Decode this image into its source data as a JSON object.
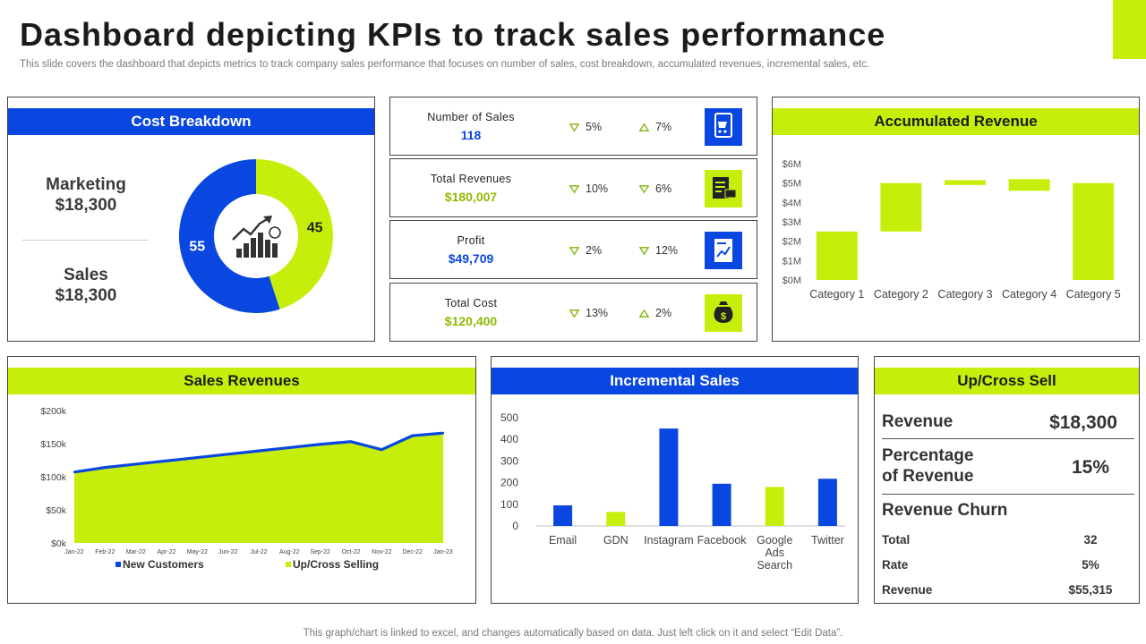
{
  "header": {
    "title": "Dashboard depicting KPIs to track sales performance",
    "subtitle": "This slide covers the dashboard that depicts metrics to track company sales performance that focuses on number of sales, cost breakdown, accumulated revenues, incremental sales, etc."
  },
  "footer": "This graph/chart is linked to excel,  and changes automatically based on data. Just left click on it and select “Edit Data”.",
  "colors": {
    "blue": "#0a47e0",
    "lime": "#c5ef0a",
    "green_text": "#8dbb00"
  },
  "cost_breakdown": {
    "title": "Cost Breakdown",
    "marketing_label": "Marketing",
    "marketing_value": "$18,300",
    "sales_label": "Sales",
    "sales_value": "$18,300",
    "center_icon": "growth-chart-icon"
  },
  "kpis": [
    {
      "name": "Number of Sales",
      "value": "118",
      "value_color": "#0a47e0",
      "delta1": "5%",
      "delta1_dir": "down",
      "delta2": "7%",
      "delta2_dir": "up",
      "icon": "shopping-cart-icon",
      "icon_bg": "#0a47e0"
    },
    {
      "name": "Total Revenues",
      "value": "$180,007",
      "value_color": "#8dbb00",
      "delta1": "10%",
      "delta1_dir": "down",
      "delta2": "6%",
      "delta2_dir": "down",
      "icon": "invoice-money-icon",
      "icon_bg": "#c5ef0a"
    },
    {
      "name": "Profit",
      "value": "$49,709",
      "value_color": "#0a47e0",
      "delta1": "2%",
      "delta1_dir": "down",
      "delta2": "12%",
      "delta2_dir": "down",
      "icon": "profit-document-icon",
      "icon_bg": "#0a47e0"
    },
    {
      "name": "Total Cost",
      "value": "$120,400",
      "value_color": "#8dbb00",
      "delta1": "13%",
      "delta1_dir": "down",
      "delta2": "2%",
      "delta2_dir": "up",
      "icon": "money-bag-icon",
      "icon_bg": "#c5ef0a"
    }
  ],
  "accumulated_revenue": {
    "title": "Accumulated Revenue"
  },
  "sales_revenues": {
    "title": "Sales Revenues"
  },
  "incremental_sales": {
    "title": "Incremental Sales"
  },
  "upcross": {
    "title": "Up/Cross Sell",
    "revenue_label": "Revenue",
    "revenue_value": "$18,300",
    "pct_label_1": "Percentage",
    "pct_label_2": "of Revenue",
    "pct_value": "15%",
    "churn_title": "Revenue Churn",
    "churn_rows": [
      {
        "label": "Total",
        "value": "32"
      },
      {
        "label": "Rate",
        "value": "5%"
      },
      {
        "label": "Revenue",
        "value": "$55,315"
      }
    ]
  },
  "chart_data": [
    {
      "id": "cost_breakdown_donut",
      "type": "pie",
      "title": "Cost Breakdown",
      "slices": [
        {
          "label": "55",
          "value": 55,
          "color": "#0a47e0"
        },
        {
          "label": "45",
          "value": 45,
          "color": "#c5ef0a"
        }
      ]
    },
    {
      "id": "accumulated_revenue",
      "type": "bar",
      "subtype": "waterfall",
      "title": "Accumulated Revenue",
      "categories": [
        "Category 1",
        "Category 2",
        "Category 3",
        "Category 4",
        "Category 5"
      ],
      "low": [
        0,
        2.5,
        4.9,
        4.6,
        0
      ],
      "high": [
        2.5,
        5.0,
        5.15,
        5.2,
        5.0
      ],
      "ylim": [
        0,
        6
      ],
      "yticks": [
        "$0M",
        "$1M",
        "$2M",
        "$3M",
        "$4M",
        "$5M",
        "$6M"
      ],
      "color": "#c5ef0a"
    },
    {
      "id": "sales_revenues",
      "type": "area",
      "title": "Sales Revenues",
      "x": [
        "Jan-22",
        "Feb-22",
        "Mar-22",
        "Apr-22",
        "May-22",
        "Jun-22",
        "Jul-22",
        "Aug-22",
        "Sep-22",
        "Oct-22",
        "Nov-22",
        "Dec-22",
        "Jan-23"
      ],
      "ylim": [
        0,
        200
      ],
      "yticks": [
        "$0k",
        "$50k",
        "$100k",
        "$150k",
        "$200k"
      ],
      "series": [
        {
          "name": "New Customers",
          "type": "line",
          "color": "#0a47e0",
          "values": [
            107,
            114,
            119,
            124,
            129,
            134,
            139,
            144,
            149,
            153,
            141,
            162,
            166
          ]
        },
        {
          "name": "Up/Cross Selling",
          "type": "area",
          "color": "#c5ef0a",
          "values": [
            105,
            112,
            117,
            122,
            127,
            132,
            137,
            142,
            147,
            151,
            139,
            160,
            164
          ]
        }
      ]
    },
    {
      "id": "incremental_sales",
      "type": "bar",
      "title": "Incremental Sales",
      "categories": [
        "Email",
        "GDN",
        "Instagram",
        "Facebook",
        "Google Ads Search",
        "Twitter"
      ],
      "category_lines": [
        [
          "Email"
        ],
        [
          "GDN"
        ],
        [
          "Instagram"
        ],
        [
          "Facebook"
        ],
        [
          "Google",
          "Ads",
          "Search"
        ],
        [
          "Twitter"
        ]
      ],
      "values": [
        95,
        65,
        450,
        195,
        180,
        218
      ],
      "colors": [
        "#0a47e0",
        "#c5ef0a",
        "#0a47e0",
        "#0a47e0",
        "#c5ef0a",
        "#0a47e0"
      ],
      "ylim": [
        0,
        500
      ],
      "yticks": [
        "0",
        "100",
        "200",
        "300",
        "400",
        "500"
      ]
    }
  ]
}
